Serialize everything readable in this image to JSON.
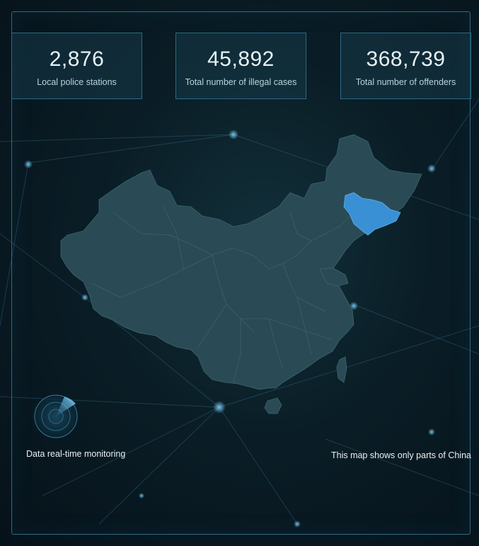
{
  "stats": [
    {
      "value": "2,876",
      "label": "Local police stations"
    },
    {
      "value": "45,892",
      "label": "Total number of illegal cases"
    },
    {
      "value": "368,739",
      "label": "Total number of offenders"
    }
  ],
  "map": {
    "highlighted_region": "Jilin",
    "base_color": "#2c4f59",
    "highlight_color": "#3a90d4"
  },
  "monitor_label": "Data real-time monitoring",
  "map_note": "This map shows only parts of China"
}
